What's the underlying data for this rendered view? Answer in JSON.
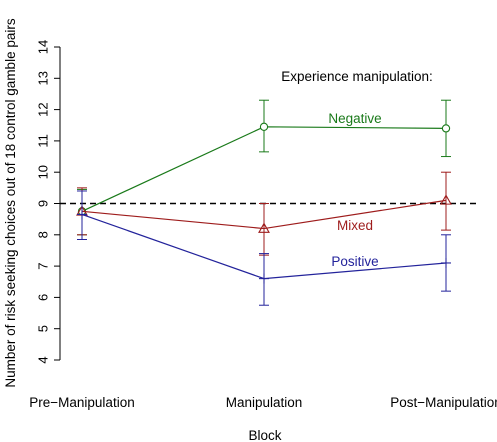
{
  "chart_data": {
    "type": "line",
    "title": "",
    "xlabel": "Block",
    "ylabel": "Number of risk seeking choices out of 18 control gamble pairs",
    "categories": [
      "Pre−Manipulation",
      "Manipulation",
      "Post−Manipulation"
    ],
    "ylim": [
      4,
      14
    ],
    "yticks": [
      4,
      5,
      6,
      7,
      8,
      9,
      10,
      11,
      12,
      13,
      14
    ],
    "reference_line": {
      "y": 9,
      "style": "dashed",
      "color": "#000000"
    },
    "legend_title": "Experience manipulation:",
    "series": [
      {
        "name": "Negative",
        "color": "#1a7a1a",
        "marker": "circle",
        "values": [
          8.75,
          11.45,
          11.4
        ],
        "err_low": [
          8.0,
          10.65,
          10.5
        ],
        "err_high": [
          9.45,
          12.3,
          12.3
        ]
      },
      {
        "name": "Mixed",
        "color": "#9e1c1c",
        "marker": "triangle",
        "values": [
          8.75,
          8.2,
          9.1
        ],
        "err_low": [
          8.0,
          7.35,
          8.15
        ],
        "err_high": [
          9.5,
          9.0,
          10.0
        ]
      },
      {
        "name": "Positive",
        "color": "#23239b",
        "marker": "plus",
        "values": [
          8.65,
          6.6,
          7.1
        ],
        "err_low": [
          7.85,
          5.75,
          6.2
        ],
        "err_high": [
          9.4,
          7.4,
          8.0
        ]
      }
    ]
  }
}
